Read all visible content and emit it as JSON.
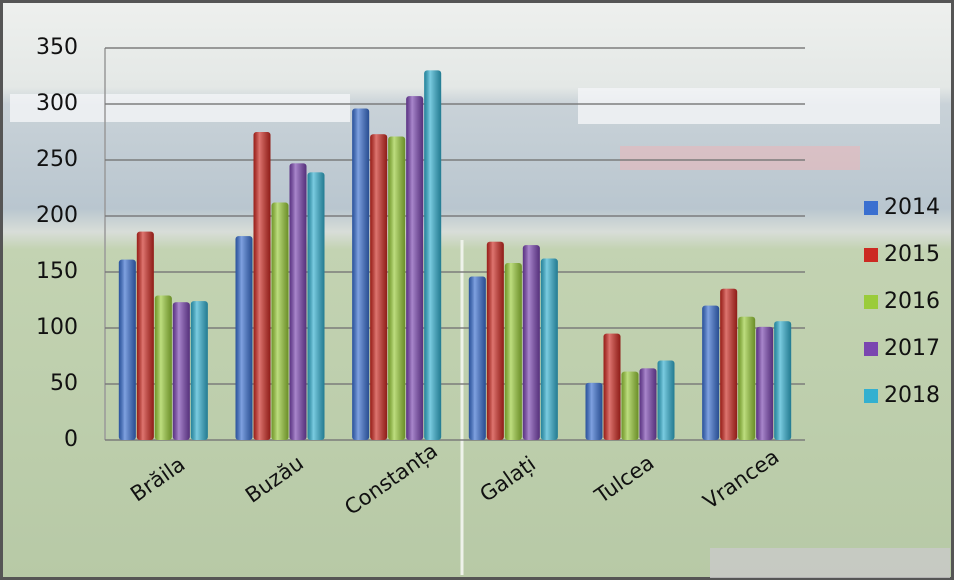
{
  "chart_data": {
    "type": "bar",
    "categories": [
      "Brăila",
      "Buzău",
      "Constanța",
      "Galați",
      "Tulcea",
      "Vrancea"
    ],
    "series": [
      {
        "name": "2014",
        "color": "#3a6fd0",
        "values": [
          161,
          182,
          296,
          146,
          51,
          120
        ]
      },
      {
        "name": "2015",
        "color": "#cc2a22",
        "values": [
          186,
          275,
          273,
          177,
          95,
          135
        ]
      },
      {
        "name": "2016",
        "color": "#9acc3a",
        "values": [
          129,
          212,
          271,
          158,
          61,
          110
        ]
      },
      {
        "name": "2017",
        "color": "#7a45b0",
        "values": [
          123,
          247,
          307,
          174,
          64,
          101
        ]
      },
      {
        "name": "2018",
        "color": "#33b0d0",
        "values": [
          124,
          239,
          330,
          162,
          71,
          106
        ]
      }
    ],
    "ylim": [
      0,
      350
    ],
    "yticks": [
      0,
      50,
      100,
      150,
      200,
      250,
      300,
      350
    ],
    "grid": true,
    "legend": "right"
  }
}
